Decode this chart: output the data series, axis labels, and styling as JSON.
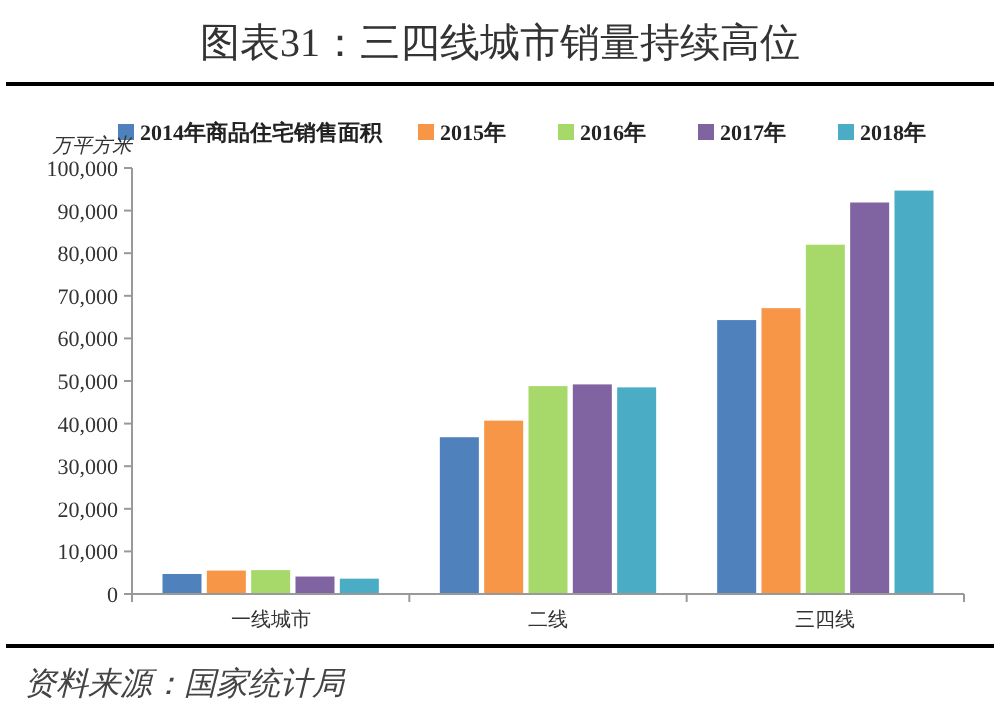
{
  "chart_data": {
    "type": "bar",
    "title": "图表31：三四线城市销量持续高位",
    "ylabel": "万平方米",
    "categories": [
      "一线城市",
      "二线",
      "三四线"
    ],
    "series": [
      {
        "name": "2014年商品住宅销售面积",
        "color": "#4f81bd",
        "values": [
          4700,
          36800,
          64300
        ]
      },
      {
        "name": "2015年",
        "color": "#f79646",
        "values": [
          5500,
          40700,
          67100
        ]
      },
      {
        "name": "2016年",
        "color": "#a6d96a",
        "values": [
          5600,
          48800,
          82000
        ]
      },
      {
        "name": "2017年",
        "color": "#8064a2",
        "values": [
          4100,
          49200,
          91900
        ]
      },
      {
        "name": "2018年",
        "color": "#4bacc6",
        "values": [
          3600,
          48500,
          94700
        ]
      }
    ],
    "ylim": [
      0,
      100000
    ],
    "yticks": [
      {
        "value": 0,
        "label": "0"
      },
      {
        "value": 10000,
        "label": "10,000"
      },
      {
        "value": 20000,
        "label": "20,000"
      },
      {
        "value": 30000,
        "label": "30,000"
      },
      {
        "value": 40000,
        "label": "40,000"
      },
      {
        "value": 50000,
        "label": "50,000"
      },
      {
        "value": 60000,
        "label": "60,000"
      },
      {
        "value": 70000,
        "label": "70,000"
      },
      {
        "value": 80000,
        "label": "80,000"
      },
      {
        "value": 90000,
        "label": "90,000"
      },
      {
        "value": 100000,
        "label": "100,000"
      }
    ],
    "grid": false,
    "legend": "top",
    "annotations": [
      "资料来源：国家统计局"
    ]
  }
}
